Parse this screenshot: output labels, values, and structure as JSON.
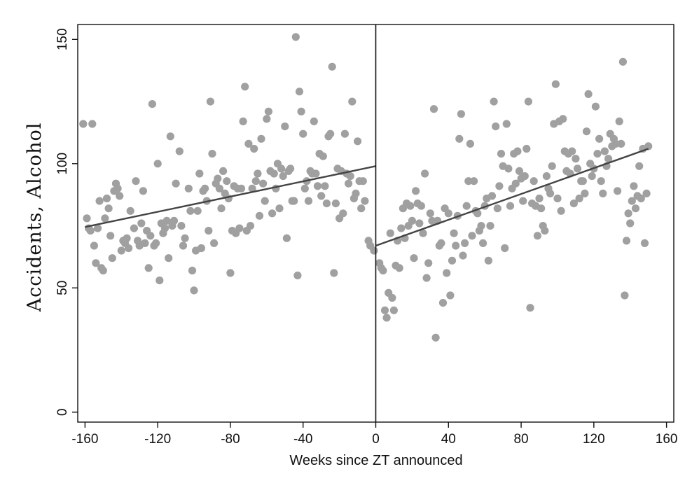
{
  "chart_data": {
    "type": "scatter",
    "xlabel": "Weeks since ZT announced",
    "ylabel": "Accidents, Alcohol",
    "xlim": [
      -164,
      164
    ],
    "ylim": [
      -4,
      156
    ],
    "xticks": [
      -160,
      -120,
      -80,
      -40,
      0,
      40,
      80,
      120,
      160
    ],
    "yticks": [
      0,
      50,
      100,
      150
    ],
    "grid": false,
    "legend": "none",
    "cutoff": 0,
    "colors": {
      "points": "#a0a0a0",
      "fit": "#444444",
      "axis": "#111111"
    },
    "fit_lines": [
      {
        "x": [
          -160,
          0
        ],
        "y": [
          74.5,
          99
        ]
      },
      {
        "x": [
          0,
          150
        ],
        "y": [
          67,
          106
        ]
      }
    ],
    "series": [
      {
        "values": [
          [
            -161,
            116
          ],
          [
            -156,
            116
          ],
          [
            -159,
            78
          ],
          [
            -158,
            74
          ],
          [
            -157,
            73
          ],
          [
            -155,
            67
          ],
          [
            -153,
            74
          ],
          [
            -154,
            60
          ],
          [
            -150,
            57
          ],
          [
            -152,
            85
          ],
          [
            -151,
            58
          ],
          [
            -148,
            86
          ],
          [
            -149,
            78
          ],
          [
            -147,
            82
          ],
          [
            -145,
            62
          ],
          [
            -146,
            71
          ],
          [
            -143,
            92
          ],
          [
            -144,
            89
          ],
          [
            -141,
            87
          ],
          [
            -142,
            90
          ],
          [
            -140,
            65
          ],
          [
            -139,
            69
          ],
          [
            -138,
            68
          ],
          [
            -137,
            70
          ],
          [
            -136,
            66
          ],
          [
            -135,
            81
          ],
          [
            -133,
            74
          ],
          [
            -132,
            93
          ],
          [
            -131,
            69
          ],
          [
            -130,
            67
          ],
          [
            -129,
            76
          ],
          [
            -128,
            89
          ],
          [
            -127,
            68
          ],
          [
            -126,
            73
          ],
          [
            -125,
            58
          ],
          [
            -124,
            71
          ],
          [
            -123,
            124
          ],
          [
            -122,
            67
          ],
          [
            -121,
            68
          ],
          [
            -120,
            100
          ],
          [
            -119,
            53
          ],
          [
            -118,
            76
          ],
          [
            -117,
            72
          ],
          [
            -116,
            74
          ],
          [
            -115,
            77
          ],
          [
            -114,
            62
          ],
          [
            -113,
            111
          ],
          [
            -112,
            75
          ],
          [
            -111,
            77
          ],
          [
            -110,
            92
          ],
          [
            -108,
            105
          ],
          [
            -107,
            75
          ],
          [
            -106,
            67
          ],
          [
            -105,
            70
          ],
          [
            -103,
            90
          ],
          [
            -102,
            81
          ],
          [
            -101,
            57
          ],
          [
            -100,
            49
          ],
          [
            -99,
            65
          ],
          [
            -98,
            81
          ],
          [
            -97,
            96
          ],
          [
            -96,
            66
          ],
          [
            -95,
            89
          ],
          [
            -94,
            90
          ],
          [
            -93,
            85
          ],
          [
            -92,
            73
          ],
          [
            -91,
            125
          ],
          [
            -90,
            104
          ],
          [
            -89,
            68
          ],
          [
            -88,
            92
          ],
          [
            -87,
            94
          ],
          [
            -86,
            90
          ],
          [
            -85,
            82
          ],
          [
            -84,
            97
          ],
          [
            -83,
            88
          ],
          [
            -82,
            93
          ],
          [
            -81,
            86
          ],
          [
            -80,
            56
          ],
          [
            -79,
            73
          ],
          [
            -78,
            91
          ],
          [
            -77,
            72
          ],
          [
            -76,
            90
          ],
          [
            -75,
            74
          ],
          [
            -74,
            90
          ],
          [
            -73,
            117
          ],
          [
            -72,
            131
          ],
          [
            -71,
            73
          ],
          [
            -70,
            108
          ],
          [
            -69,
            75
          ],
          [
            -68,
            90
          ],
          [
            -67,
            106
          ],
          [
            -66,
            93
          ],
          [
            -65,
            96
          ],
          [
            -64,
            79
          ],
          [
            -63,
            110
          ],
          [
            -62,
            92
          ],
          [
            -61,
            85
          ],
          [
            -60,
            118
          ],
          [
            -59,
            121
          ],
          [
            -58,
            97
          ],
          [
            -57,
            80
          ],
          [
            -56,
            96
          ],
          [
            -55,
            90
          ],
          [
            -54,
            100
          ],
          [
            -53,
            82
          ],
          [
            -52,
            98
          ],
          [
            -51,
            95
          ],
          [
            -50,
            115
          ],
          [
            -49,
            70
          ],
          [
            -48,
            97
          ],
          [
            -47,
            98
          ],
          [
            -46,
            85
          ],
          [
            -45,
            85
          ],
          [
            -44,
            151
          ],
          [
            -43,
            55
          ],
          [
            -42,
            129
          ],
          [
            -41,
            121
          ],
          [
            -40,
            112
          ],
          [
            -39,
            90
          ],
          [
            -38,
            93
          ],
          [
            -37,
            85
          ],
          [
            -36,
            97
          ],
          [
            -35,
            96
          ],
          [
            -34,
            117
          ],
          [
            -33,
            96
          ],
          [
            -32,
            91
          ],
          [
            -31,
            104
          ],
          [
            -30,
            87
          ],
          [
            -29,
            103
          ],
          [
            -28,
            91
          ],
          [
            -27,
            84
          ],
          [
            -26,
            111
          ],
          [
            -25,
            112
          ],
          [
            -24,
            139
          ],
          [
            -23,
            56
          ],
          [
            -22,
            84
          ],
          [
            -21,
            98
          ],
          [
            -20,
            78
          ],
          [
            -19,
            97
          ],
          [
            -18,
            80
          ],
          [
            -17,
            112
          ],
          [
            -16,
            96
          ],
          [
            -15,
            92
          ],
          [
            -14,
            95
          ],
          [
            -13,
            125
          ],
          [
            -12,
            86
          ],
          [
            -11,
            88
          ],
          [
            -10,
            109
          ],
          [
            -9,
            93
          ],
          [
            -8,
            82
          ],
          [
            -7,
            93
          ],
          [
            -6,
            85
          ],
          [
            -4,
            69
          ],
          [
            -3,
            67
          ],
          [
            -1,
            65
          ]
        ]
      },
      {
        "values": [
          [
            2,
            60
          ],
          [
            3,
            58
          ],
          [
            4,
            57
          ],
          [
            5,
            41
          ],
          [
            6,
            38
          ],
          [
            7,
            48
          ],
          [
            8,
            72
          ],
          [
            9,
            46
          ],
          [
            10,
            41
          ],
          [
            11,
            59
          ],
          [
            12,
            69
          ],
          [
            13,
            58
          ],
          [
            14,
            74
          ],
          [
            15,
            82
          ],
          [
            16,
            70
          ],
          [
            17,
            84
          ],
          [
            18,
            75
          ],
          [
            19,
            83
          ],
          [
            20,
            77
          ],
          [
            21,
            62
          ],
          [
            22,
            89
          ],
          [
            23,
            84
          ],
          [
            24,
            76
          ],
          [
            25,
            83
          ],
          [
            26,
            72
          ],
          [
            27,
            96
          ],
          [
            28,
            54
          ],
          [
            29,
            60
          ],
          [
            30,
            80
          ],
          [
            31,
            77
          ],
          [
            32,
            122
          ],
          [
            33,
            30
          ],
          [
            34,
            77
          ],
          [
            35,
            67
          ],
          [
            36,
            68
          ],
          [
            37,
            44
          ],
          [
            38,
            82
          ],
          [
            39,
            56
          ],
          [
            40,
            80
          ],
          [
            41,
            47
          ],
          [
            42,
            61
          ],
          [
            43,
            72
          ],
          [
            44,
            67
          ],
          [
            45,
            79
          ],
          [
            46,
            110
          ],
          [
            47,
            120
          ],
          [
            48,
            63
          ],
          [
            49,
            68
          ],
          [
            50,
            83
          ],
          [
            51,
            93
          ],
          [
            52,
            108
          ],
          [
            53,
            71
          ],
          [
            54,
            93
          ],
          [
            55,
            81
          ],
          [
            56,
            80
          ],
          [
            57,
            73
          ],
          [
            58,
            75
          ],
          [
            59,
            68
          ],
          [
            60,
            83
          ],
          [
            61,
            86
          ],
          [
            62,
            61
          ],
          [
            63,
            75
          ],
          [
            64,
            87
          ],
          [
            65,
            125
          ],
          [
            66,
            115
          ],
          [
            67,
            82
          ],
          [
            68,
            91
          ],
          [
            69,
            104
          ],
          [
            70,
            99
          ],
          [
            71,
            66
          ],
          [
            72,
            116
          ],
          [
            73,
            98
          ],
          [
            74,
            83
          ],
          [
            75,
            90
          ],
          [
            76,
            104
          ],
          [
            77,
            92
          ],
          [
            78,
            105
          ],
          [
            79,
            97
          ],
          [
            80,
            94
          ],
          [
            81,
            85
          ],
          [
            82,
            95
          ],
          [
            83,
            106
          ],
          [
            84,
            125
          ],
          [
            85,
            42
          ],
          [
            86,
            84
          ],
          [
            87,
            93
          ],
          [
            88,
            83
          ],
          [
            89,
            71
          ],
          [
            90,
            86
          ],
          [
            91,
            82
          ],
          [
            92,
            75
          ],
          [
            93,
            73
          ],
          [
            94,
            95
          ],
          [
            95,
            90
          ],
          [
            96,
            88
          ],
          [
            97,
            99
          ],
          [
            98,
            116
          ],
          [
            99,
            132
          ],
          [
            100,
            86
          ],
          [
            101,
            117
          ],
          [
            102,
            81
          ],
          [
            103,
            118
          ],
          [
            104,
            105
          ],
          [
            105,
            97
          ],
          [
            106,
            104
          ],
          [
            107,
            96
          ],
          [
            108,
            105
          ],
          [
            109,
            84
          ],
          [
            110,
            102
          ],
          [
            111,
            98
          ],
          [
            112,
            86
          ],
          [
            113,
            93
          ],
          [
            114,
            93
          ],
          [
            115,
            88
          ],
          [
            116,
            113
          ],
          [
            117,
            128
          ],
          [
            118,
            100
          ],
          [
            119,
            95
          ],
          [
            120,
            98
          ],
          [
            121,
            123
          ],
          [
            122,
            104
          ],
          [
            123,
            110
          ],
          [
            124,
            93
          ],
          [
            125,
            88
          ],
          [
            126,
            105
          ],
          [
            127,
            99
          ],
          [
            128,
            102
          ],
          [
            129,
            112
          ],
          [
            130,
            107
          ],
          [
            131,
            110
          ],
          [
            132,
            108
          ],
          [
            133,
            89
          ],
          [
            134,
            117
          ],
          [
            135,
            108
          ],
          [
            136,
            141
          ],
          [
            137,
            47
          ],
          [
            138,
            69
          ],
          [
            139,
            80
          ],
          [
            140,
            76
          ],
          [
            141,
            85
          ],
          [
            142,
            91
          ],
          [
            143,
            82
          ],
          [
            144,
            87
          ],
          [
            145,
            99
          ],
          [
            146,
            86
          ],
          [
            147,
            106
          ],
          [
            148,
            68
          ],
          [
            149,
            88
          ],
          [
            150,
            107
          ]
        ]
      }
    ]
  }
}
